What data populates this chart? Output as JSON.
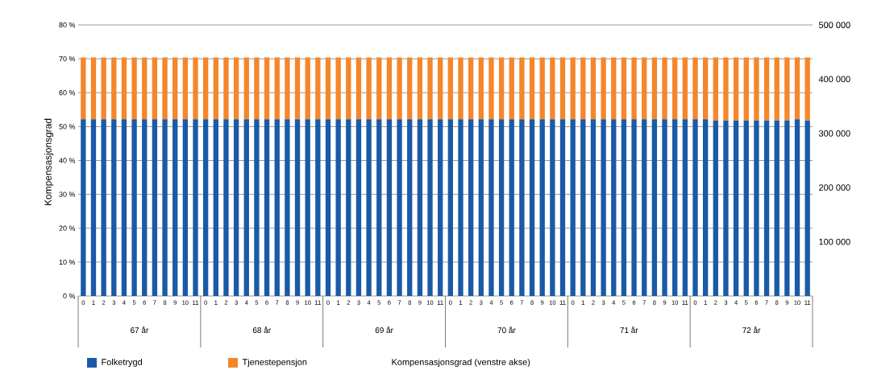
{
  "chart_data": {
    "type": "bar",
    "stacked": true,
    "ylabel": "Kompensasjonsgrad",
    "categories": [
      "0",
      "1",
      "2",
      "3",
      "4",
      "5",
      "6",
      "7",
      "8",
      "9",
      "10",
      "11",
      "0",
      "1",
      "2",
      "3",
      "4",
      "5",
      "6",
      "7",
      "8",
      "9",
      "10",
      "11",
      "0",
      "1",
      "2",
      "3",
      "4",
      "5",
      "6",
      "7",
      "8",
      "9",
      "10",
      "11",
      "0",
      "1",
      "2",
      "3",
      "4",
      "5",
      "6",
      "7",
      "8",
      "9",
      "10",
      "11",
      "0",
      "1",
      "2",
      "3",
      "4",
      "5",
      "6",
      "7",
      "8",
      "9",
      "10",
      "11",
      "0",
      "1",
      "2",
      "3",
      "4",
      "5",
      "6",
      "7",
      "8",
      "9",
      "10",
      "11"
    ],
    "series": [
      {
        "name": "Folketrygd",
        "color": "#1a5aa6",
        "axis": "y2",
        "values": [
          326000,
          326000,
          326000,
          326000,
          326000,
          326000,
          326000,
          326000,
          326000,
          326000,
          326000,
          326000,
          326000,
          326000,
          326000,
          326000,
          326000,
          326000,
          326000,
          326000,
          326000,
          326000,
          326000,
          326000,
          326000,
          326000,
          326000,
          326000,
          326000,
          326000,
          326000,
          326000,
          326000,
          326000,
          326000,
          326000,
          326000,
          326000,
          326000,
          326000,
          326000,
          326000,
          326000,
          326000,
          326000,
          326000,
          326000,
          326000,
          326000,
          326000,
          326000,
          326000,
          326000,
          326000,
          326000,
          326000,
          326000,
          326000,
          326000,
          326000,
          326000,
          326000,
          324000,
          324000,
          324000,
          324000,
          324000,
          324000,
          324000,
          324000,
          326000,
          324000
        ]
      },
      {
        "name": "Tjenestepensjon",
        "color": "#f5862a",
        "axis": "y2",
        "values": [
          114000,
          114000,
          114000,
          114000,
          114000,
          114000,
          114000,
          114000,
          114000,
          114000,
          114000,
          114000,
          114000,
          114000,
          114000,
          114000,
          114000,
          114000,
          114000,
          114000,
          114000,
          114000,
          114000,
          114000,
          114000,
          114000,
          114000,
          114000,
          114000,
          114000,
          114000,
          114000,
          114000,
          114000,
          114000,
          114000,
          114000,
          114000,
          114000,
          114000,
          114000,
          114000,
          114000,
          114000,
          114000,
          114000,
          114000,
          114000,
          114000,
          114000,
          114000,
          114000,
          114000,
          114000,
          114000,
          114000,
          114000,
          114000,
          114000,
          114000,
          114000,
          114000,
          116000,
          116000,
          116000,
          116000,
          116000,
          116000,
          116000,
          116000,
          114000,
          116000
        ]
      }
    ],
    "ylim": [
      0,
      80
    ],
    "yticks": [
      {
        "value": 0,
        "label": "0 %"
      },
      {
        "value": 10,
        "label": "10 %"
      },
      {
        "value": 20,
        "label": "20 %"
      },
      {
        "value": 30,
        "label": "30 %"
      },
      {
        "value": 40,
        "label": "40 %"
      },
      {
        "value": 50,
        "label": "50 %"
      },
      {
        "value": 60,
        "label": "60 %"
      },
      {
        "value": 70,
        "label": "70 %"
      },
      {
        "value": 80,
        "label": "80 %"
      }
    ],
    "y2lim": [
      0,
      500000
    ],
    "y2ticks": [
      {
        "value": 100000,
        "label": "100 000"
      },
      {
        "value": 200000,
        "label": "200 000"
      },
      {
        "value": 300000,
        "label": "300 000"
      },
      {
        "value": 400000,
        "label": "400 000"
      },
      {
        "value": 500000,
        "label": "500 000"
      }
    ],
    "grid": "y",
    "legend": "bottom",
    "annotations": [
      "67 år",
      "68 år",
      "69 år",
      "70 år",
      "71 år",
      "72 år",
      "Kompensasjonsgrad (venstre akse)"
    ]
  }
}
